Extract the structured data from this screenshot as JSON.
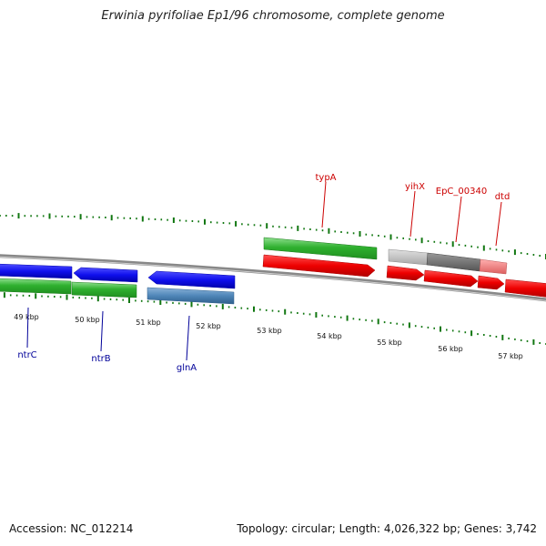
{
  "title": "Erwinia pyrifoliae Ep1/96 chromosome, complete genome",
  "footer": {
    "accession": "Accession: NC_012214",
    "topology": "Topology: circular; Length: 4,026,322 bp; Genes: 3,742"
  },
  "ticks": [
    "49 kbp",
    "50 kbp",
    "51 kbp",
    "52 kbp",
    "53 kbp",
    "54 kbp",
    "55 kbp",
    "56 kbp",
    "57 kbp"
  ],
  "gene_labels": {
    "forward": [
      "typA",
      "yihX",
      "EpC_00340",
      "dtd"
    ],
    "reverse": [
      "ntrC",
      "ntrB",
      "glnA"
    ]
  },
  "colors": {
    "forward_label": "#cc0000",
    "reverse_label": "#000099",
    "cds_forward": "#ee0000",
    "cds_reverse": "#1010ee",
    "gene_green": "#33bb33",
    "gene_steelblue": "#4f86b8",
    "gene_lightgray": "#c0c0c0",
    "gene_darkgray": "#707070",
    "gene_pink": "#ee8080",
    "backbone": "#888888",
    "tick_green": "#117711"
  }
}
